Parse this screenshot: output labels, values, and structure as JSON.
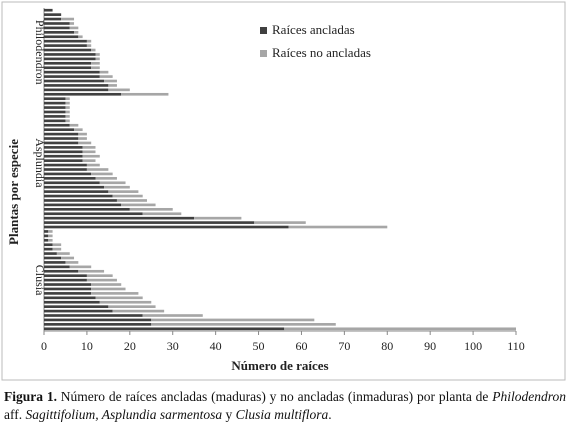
{
  "chart_data": {
    "type": "stacked-bar-horizontal",
    "xlabel": "Número de raíces",
    "ylabel": "Plantas por especie",
    "xlim": [
      0,
      110
    ],
    "xticks": [
      0,
      10,
      20,
      30,
      40,
      50,
      60,
      70,
      80,
      90,
      100,
      110
    ],
    "series": [
      {
        "name": "Raíces ancladas",
        "color": "#404040"
      },
      {
        "name": "Raíces no ancladas",
        "color": "#a6a6a6"
      }
    ],
    "groups": [
      {
        "name": "Philodendron",
        "anchored": [
          2,
          4,
          4,
          6,
          6,
          7,
          8,
          10,
          10,
          11,
          12,
          12,
          11,
          11,
          13,
          13,
          14,
          15,
          15,
          18
        ],
        "unanchored": [
          0,
          0,
          3,
          1,
          2,
          1,
          1,
          1,
          1,
          1,
          1,
          1,
          2,
          2,
          2,
          3,
          3,
          2,
          5,
          11
        ]
      },
      {
        "name": "Asplundia",
        "anchored": [
          5,
          5,
          5,
          5,
          5,
          5,
          6,
          7,
          8,
          8,
          8,
          9,
          9,
          9,
          9,
          10,
          10,
          11,
          12,
          13,
          14,
          15,
          16,
          17,
          18,
          20,
          23,
          35,
          49,
          57
        ],
        "unanchored": [
          1,
          1,
          1,
          1,
          1,
          1,
          2,
          2,
          2,
          2,
          3,
          3,
          3,
          4,
          3,
          3,
          5,
          5,
          5,
          6,
          6,
          7,
          7,
          7,
          8,
          10,
          9,
          11,
          12,
          23
        ]
      },
      {
        "name": "Clusia",
        "anchored": [
          1,
          1,
          1,
          2,
          2,
          3,
          4,
          5,
          6,
          8,
          10,
          10,
          11,
          11,
          11,
          12,
          13,
          15,
          16,
          23,
          25,
          25,
          56
        ],
        "unanchored": [
          1,
          1,
          1,
          2,
          2,
          3,
          3,
          3,
          5,
          6,
          6,
          7,
          7,
          8,
          11,
          11,
          12,
          11,
          12,
          14,
          38,
          43,
          54
        ]
      }
    ]
  },
  "caption": [
    {
      "text": "Figura 1.",
      "style": "bold"
    },
    {
      "text": " Número de raíces ancladas (maduras) y no ancladas (inmaduras) por planta de ",
      "style": "normal"
    },
    {
      "text": "Philodendron",
      "style": "italic"
    },
    {
      "text": " aff. ",
      "style": "normal"
    },
    {
      "text": "Sagittifolium, Asplundia sarmentosa",
      "style": "italic"
    },
    {
      "text": " y ",
      "style": "normal"
    },
    {
      "text": "Clusia multiflora",
      "style": "italic"
    },
    {
      "text": ".",
      "style": "normal"
    }
  ]
}
